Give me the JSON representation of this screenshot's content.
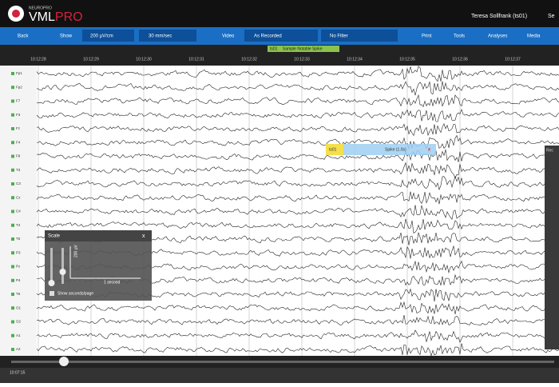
{
  "header": {
    "brand_small": "NEUROPRO",
    "brand_main": "VML",
    "brand_accent": "PRO",
    "user": "Teresa Sollfrank (ts01)",
    "settings": "Se"
  },
  "toolbar": {
    "back": "Back",
    "show": "Show",
    "sensitivity": "200 µV/cm",
    "speed": "30 mm/sec",
    "video": "Video",
    "montage": "As Recorded",
    "filter": "No Filter",
    "print": "Print",
    "tools": "Tools",
    "analyses": "Analyses",
    "media": "Media"
  },
  "timeline": {
    "times": [
      "10:12:28",
      "10:12:29",
      "10:12:30",
      "10:12:31",
      "10:12:32",
      "10:12:33",
      "10:12:34",
      "10:12:35",
      "10:12:36",
      "10:12:37"
    ],
    "event_tag": "ts01",
    "event_label": "Sample Notable Spike"
  },
  "channels": [
    "Fp1",
    "Fp2",
    "F7",
    "F3",
    "Fz",
    "F4",
    "F8",
    "T3",
    "C3",
    "Cz",
    "C4",
    "T4",
    "T5",
    "P3",
    "Pz",
    "P4",
    "T6",
    "O1",
    "O2",
    "A1",
    "A2"
  ],
  "annotation": {
    "user": "ts01",
    "label": "Spike (1.0s)",
    "close": "x"
  },
  "scale_dialog": {
    "title": "Scale",
    "close": "x",
    "amplitude": "200 µV",
    "time": "1 second",
    "option": "Show seconds/page"
  },
  "side_panel": {
    "title": "Rec"
  },
  "footer": {
    "position_time": "10:07:15"
  }
}
